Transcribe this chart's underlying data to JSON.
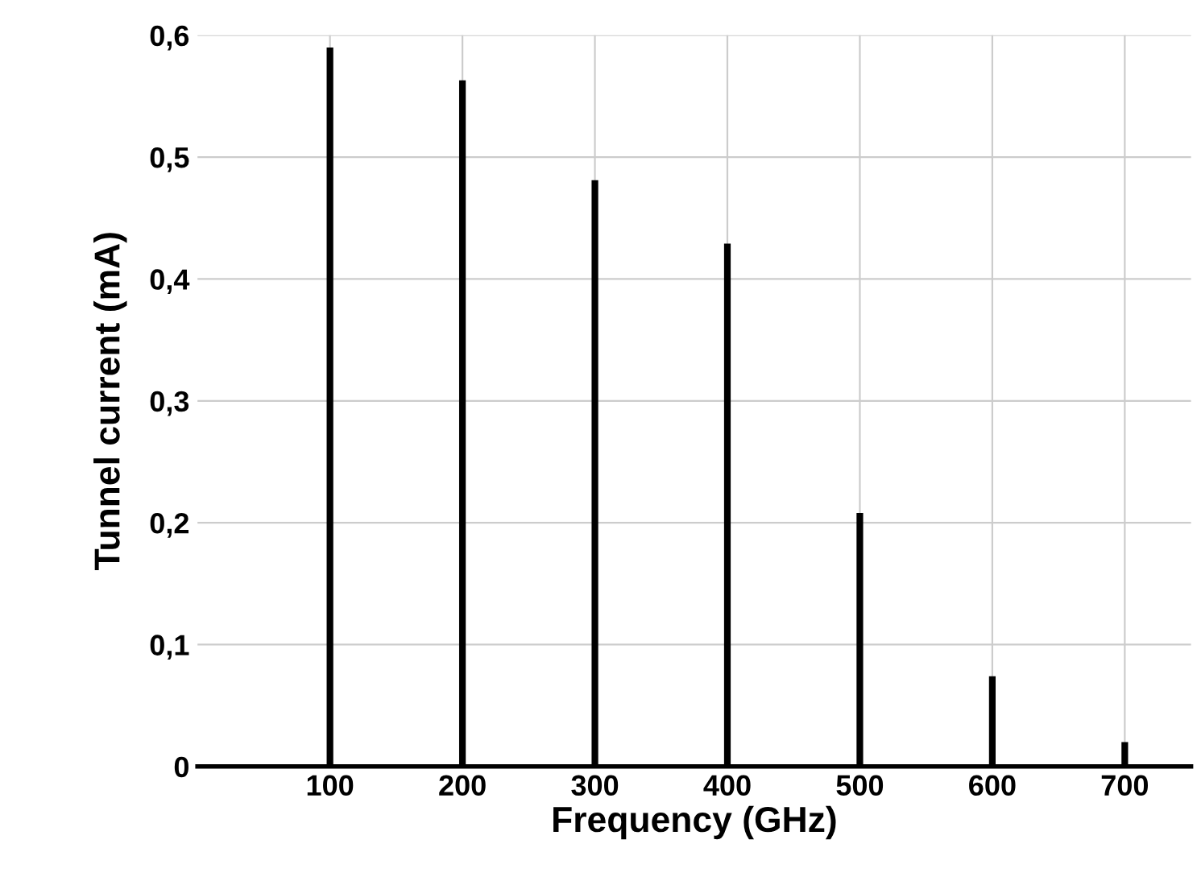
{
  "chart_data": {
    "type": "bar",
    "xlabel": "Frequency (GHz)",
    "ylabel": "Tunnel current (mA)",
    "x": [
      100,
      200,
      300,
      400,
      500,
      600,
      700
    ],
    "values": [
      0.59,
      0.563,
      0.481,
      0.429,
      0.208,
      0.074,
      0.02
    ],
    "color": "#000000",
    "xlim": [
      0,
      750
    ],
    "xticks": [
      100,
      200,
      300,
      400,
      500,
      600,
      700
    ],
    "ylim": [
      0,
      0.6
    ],
    "yticks": [
      0,
      {
        "value": 0.1,
        "label": "0,1"
      },
      {
        "value": 0.2,
        "label": "0,2"
      },
      {
        "value": 0.3,
        "label": "0,3"
      },
      {
        "value": 0.4,
        "label": "0,4"
      },
      {
        "value": 0.5,
        "label": "0,5"
      },
      {
        "value": 0.6,
        "label": "0,6"
      }
    ],
    "grid": true
  }
}
